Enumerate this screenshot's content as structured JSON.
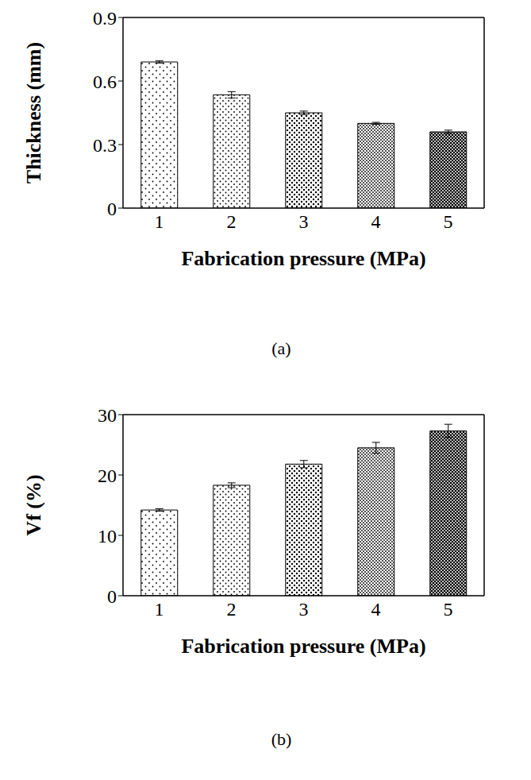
{
  "chart_data": [
    {
      "type": "bar",
      "categories": [
        1,
        2,
        3,
        4,
        5
      ],
      "values": [
        0.69,
        0.535,
        0.45,
        0.4,
        0.36
      ],
      "errors": [
        0.005,
        0.015,
        0.008,
        0.005,
        0.008
      ],
      "x_label": "Fabrication pressure (MPa)",
      "y_label": "Thickness (mm)",
      "ylim": [
        0,
        0.9
      ],
      "yticks": [
        0,
        0.3,
        0.6,
        0.9
      ],
      "annotations": [
        "(a)"
      ]
    },
    {
      "type": "bar",
      "categories": [
        1,
        2,
        3,
        4,
        5
      ],
      "values": [
        14.2,
        18.3,
        21.8,
        24.5,
        27.3
      ],
      "errors": [
        0.2,
        0.4,
        0.6,
        0.9,
        1.1
      ],
      "x_label": "Fabrication pressure (MPa)",
      "y_label": "Vf (%)",
      "ylim": [
        0,
        30
      ],
      "yticks": [
        0,
        10,
        20,
        30
      ],
      "annotations": [
        "(b)"
      ]
    }
  ]
}
